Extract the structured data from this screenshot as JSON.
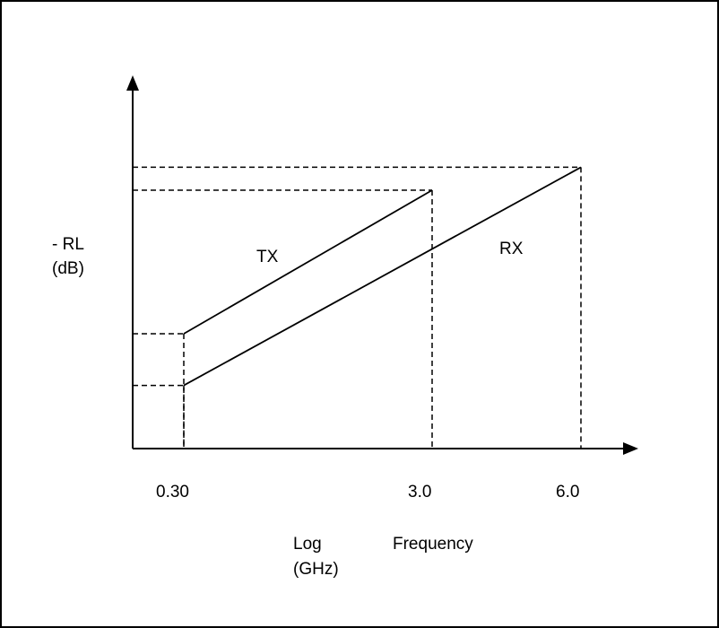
{
  "chart_data": {
    "type": "line",
    "ylabel": [
      "- RL",
      "(dB)"
    ],
    "xlabel": {
      "left": [
        "Log",
        "(GHz)"
      ],
      "right": "Frequency"
    },
    "x_scale": "log",
    "x_ticks": [
      "0.30",
      "3.0",
      "6.0"
    ],
    "series": [
      {
        "name": "TX",
        "points": [
          {
            "x": 0.3,
            "y": 0.4
          },
          {
            "x": 3.0,
            "y": 0.9
          }
        ]
      },
      {
        "name": "RX",
        "points": [
          {
            "x": 0.3,
            "y": 0.22
          },
          {
            "x": 6.0,
            "y": 0.98
          }
        ]
      }
    ],
    "yticks_visible": false,
    "grid": false,
    "reference_lines": "dashed"
  },
  "colors": {
    "line": "#000000",
    "background": "#ffffff"
  }
}
